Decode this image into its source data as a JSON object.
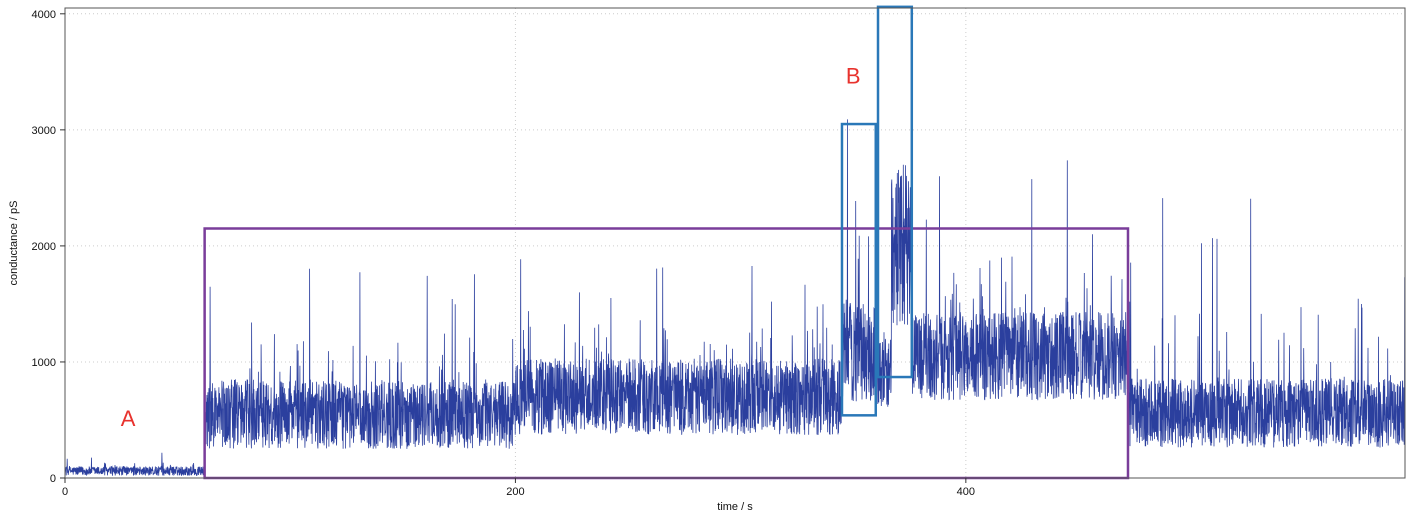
{
  "chart_data": {
    "type": "line",
    "title": "",
    "xlabel": "time / s",
    "ylabel": "conductance / pS",
    "xlim": [
      0,
      595
    ],
    "ylim": [
      0,
      4050
    ],
    "x_ticks": [
      0,
      200,
      400
    ],
    "y_ticks": [
      0,
      1000,
      2000,
      3000,
      4000
    ],
    "grid": true,
    "series": [
      {
        "color": "#2b3f9e",
        "segments": [
          {
            "x_start": 0,
            "x_end": 62,
            "baseline": 60,
            "noise": 40,
            "spike_max": 220
          },
          {
            "x_start": 62,
            "x_end": 200,
            "baseline": 550,
            "noise": 300,
            "spike_max": 1950
          },
          {
            "x_start": 200,
            "x_end": 345,
            "baseline": 700,
            "noise": 330,
            "spike_max": 1950
          },
          {
            "x_start": 345,
            "x_end": 360,
            "baseline": 1100,
            "noise": 450,
            "spike_max": 3200
          },
          {
            "x_start": 360,
            "x_end": 367,
            "baseline": 900,
            "noise": 300,
            "spike_max": 1800
          },
          {
            "x_start": 367,
            "x_end": 376,
            "baseline": 2000,
            "noise": 700,
            "spike_max": 4000
          },
          {
            "x_start": 376,
            "x_end": 472,
            "baseline": 1050,
            "noise": 380,
            "spike_max": 2800
          },
          {
            "x_start": 472,
            "x_end": 595,
            "baseline": 560,
            "noise": 300,
            "spike_max": 2450
          }
        ]
      }
    ],
    "annotations": [
      {
        "label": "A",
        "color": "#e8322d",
        "x": 28,
        "y": 450
      },
      {
        "label": "B",
        "color": "#e8322d",
        "x": 350,
        "y": 3400
      }
    ],
    "regions": [
      {
        "color": "#7a3d9a",
        "x0": 62,
        "x1": 472,
        "y0": 0,
        "y1": 2150
      },
      {
        "color": "#2a78b8",
        "x0": 345,
        "x1": 360,
        "y0": 540,
        "y1": 3050
      },
      {
        "color": "#2a78b8",
        "x0": 361,
        "x1": 376,
        "y0": 870,
        "y1": 4060
      }
    ]
  }
}
